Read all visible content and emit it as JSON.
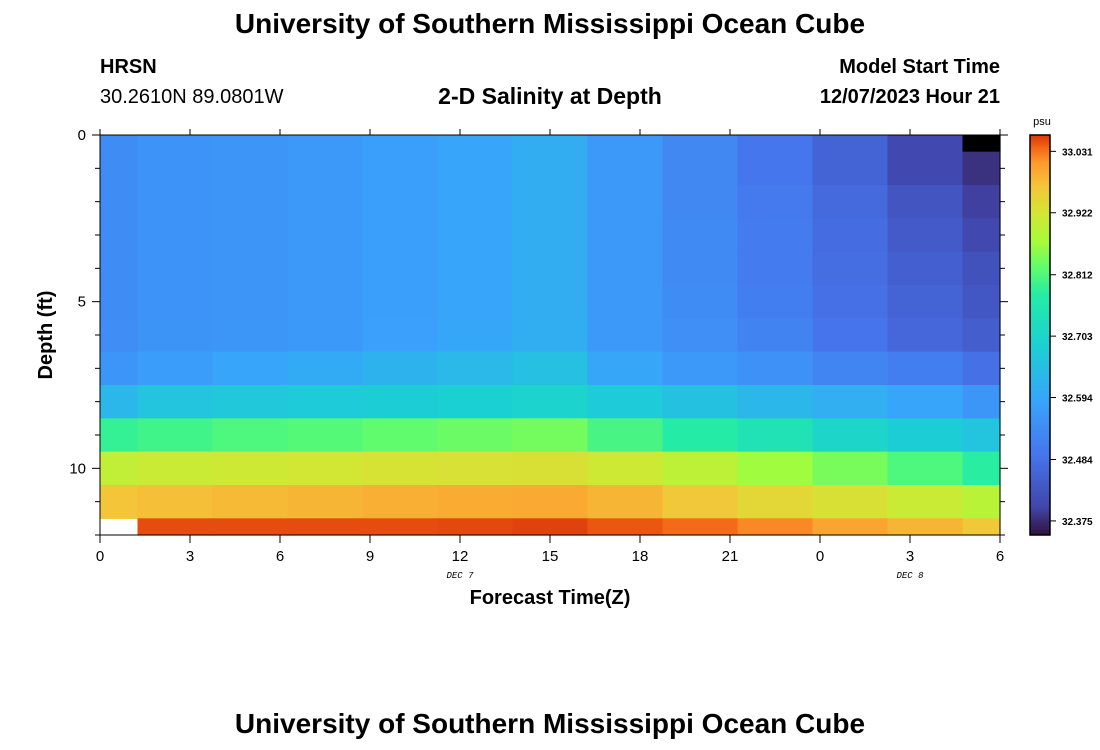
{
  "page": {
    "title_top": "University of Southern Mississippi Ocean Cube",
    "title_bottom": "University of Southern Mississippi Ocean Cube",
    "station_name": "HRSN",
    "coordinates": "30.2610N  89.0801W",
    "subtitle": "2-D Salinity at Depth",
    "model_start_label": "Model Start Time",
    "model_start_value": "12/07/2023 Hour 21"
  },
  "chart_data": {
    "type": "heatmap",
    "title": "2-D Salinity at Depth",
    "xlabel": "Forecast Time(Z)",
    "ylabel": "Depth (ft)",
    "x_range": [
      0,
      30
    ],
    "y_range": [
      0,
      12
    ],
    "y_inverted": true,
    "x_ticks": [
      "0",
      "3",
      "6",
      "9",
      "12",
      "15",
      "18",
      "21",
      "0",
      "3",
      "6"
    ],
    "x_tick_values": [
      0,
      3,
      6,
      9,
      12,
      15,
      18,
      21,
      24,
      27,
      30
    ],
    "y_ticks": [
      "0",
      "5",
      "10"
    ],
    "y_tick_values": [
      0,
      5,
      10
    ],
    "date_labels": [
      {
        "text": "DEC 7",
        "x": 12
      },
      {
        "text": "DEC 8",
        "x": 27
      }
    ],
    "column_edges": [
      0,
      1.25,
      3.75,
      6.25,
      8.75,
      11.25,
      13.75,
      16.25,
      18.75,
      21.25,
      23.75,
      26.25,
      28.75,
      30
    ],
    "row_edges": [
      0,
      0.5,
      1.5,
      2.5,
      3.5,
      4.5,
      5.5,
      6.5,
      7.5,
      8.5,
      9.5,
      10.5,
      11.5,
      12
    ],
    "colorbar": {
      "unit": "psu",
      "min": 32.35,
      "max": 33.06,
      "tick_labels": [
        "33.031",
        "32.922",
        "32.812",
        "32.703",
        "32.594",
        "32.484",
        "32.375"
      ],
      "tick_values": [
        33.031,
        32.922,
        32.812,
        32.703,
        32.594,
        32.484,
        32.375
      ]
    },
    "values": [
      [
        32.54,
        32.553,
        32.558,
        32.565,
        32.578,
        32.592,
        32.608,
        32.563,
        32.53,
        32.495,
        32.46,
        32.405,
        32.35
      ],
      [
        32.54,
        32.553,
        32.558,
        32.565,
        32.578,
        32.592,
        32.608,
        32.563,
        32.53,
        32.495,
        32.46,
        32.405,
        32.38
      ],
      [
        32.54,
        32.553,
        32.558,
        32.565,
        32.578,
        32.592,
        32.608,
        32.563,
        32.53,
        32.5,
        32.47,
        32.43,
        32.395
      ],
      [
        32.54,
        32.553,
        32.558,
        32.565,
        32.578,
        32.592,
        32.608,
        32.563,
        32.535,
        32.505,
        32.475,
        32.44,
        32.405
      ],
      [
        32.54,
        32.553,
        32.558,
        32.565,
        32.578,
        32.592,
        32.608,
        32.563,
        32.535,
        32.505,
        32.478,
        32.45,
        32.425
      ],
      [
        32.54,
        32.553,
        32.558,
        32.565,
        32.578,
        32.592,
        32.608,
        32.563,
        32.54,
        32.51,
        32.482,
        32.46,
        32.435
      ],
      [
        32.542,
        32.555,
        32.56,
        32.567,
        32.58,
        32.593,
        32.61,
        32.566,
        32.545,
        32.52,
        32.49,
        32.465,
        32.448
      ],
      [
        32.56,
        32.575,
        32.59,
        32.605,
        32.62,
        32.635,
        32.65,
        32.595,
        32.563,
        32.55,
        32.525,
        32.51,
        32.482
      ],
      [
        32.63,
        32.66,
        32.668,
        32.675,
        32.68,
        32.688,
        32.695,
        32.675,
        32.655,
        32.63,
        32.612,
        32.59,
        32.56
      ],
      [
        32.79,
        32.8,
        32.81,
        32.815,
        32.825,
        32.832,
        32.838,
        32.805,
        32.775,
        32.745,
        32.705,
        32.68,
        32.66
      ],
      [
        32.9,
        32.91,
        32.915,
        32.92,
        32.925,
        32.928,
        32.93,
        32.915,
        32.895,
        32.865,
        32.84,
        32.81,
        32.78
      ],
      [
        32.97,
        32.975,
        32.98,
        32.985,
        32.99,
        32.993,
        32.995,
        32.985,
        32.965,
        32.945,
        32.93,
        32.91,
        32.89
      ],
      [
        null,
        33.05,
        33.05,
        33.05,
        33.05,
        33.052,
        33.055,
        33.045,
        33.035,
        33.02,
        33.0,
        32.985,
        32.965
      ]
    ]
  }
}
